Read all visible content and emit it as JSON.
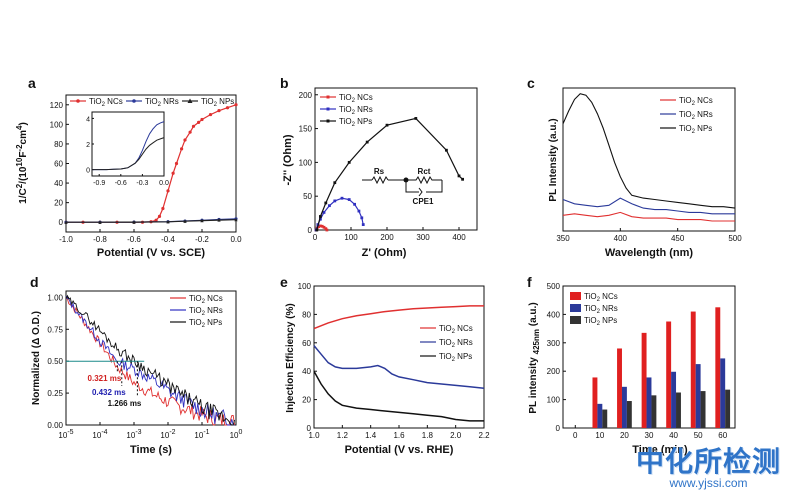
{
  "watermark": {
    "title": "中化所检测",
    "url": "www.yjssi.com"
  },
  "chart_data": [
    {
      "panel": "a",
      "type": "line",
      "ylabel_html": "1/C<tspan font-size='8' dy='-4'>2</tspan><tspan dy='4'>/(10</tspan><tspan font-size='8' dy='-4'>10</tspan><tspan dy='4'>F</tspan><tspan font-size='8' dy='-4'>-2</tspan><tspan dy='4'>cm</tspan><tspan font-size='8' dy='-4'>4</tspan><tspan dy='4'>)</tspan>",
      "xlabel": "Potential (V vs. SCE)",
      "xlim": [
        -1.0,
        0.0
      ],
      "ylim": [
        -10,
        130
      ],
      "xticks": [
        -1.0,
        -0.8,
        -0.6,
        -0.4,
        -0.2,
        0.0
      ],
      "xticklabels": [
        "-1.0",
        "-0.8",
        "-0.6",
        "-0.4",
        "-0.2",
        "0.0"
      ],
      "yticks": [
        0,
        20,
        40,
        60,
        80,
        100,
        120
      ],
      "series": [
        {
          "name_html": "TiO<tspan font-size='6' dy='2'>2</tspan><tspan dy='-2'> NCs</tspan>",
          "color": "#e03030",
          "marker": "circle",
          "x": [
            -1.0,
            -0.9,
            -0.8,
            -0.7,
            -0.6,
            -0.55,
            -0.5,
            -0.47,
            -0.45,
            -0.43,
            -0.4,
            -0.37,
            -0.35,
            -0.32,
            -0.3,
            -0.27,
            -0.25,
            -0.22,
            -0.2,
            -0.15,
            -0.1,
            -0.05,
            0.0
          ],
          "y": [
            0,
            0,
            0,
            0,
            0,
            0,
            0.5,
            2,
            6,
            14,
            32,
            50,
            60,
            75,
            84,
            92,
            98,
            102,
            105,
            110,
            114,
            117,
            120
          ]
        },
        {
          "name_html": "TiO<tspan font-size='6' dy='2'>2</tspan><tspan dy='-2'> NRs</tspan>",
          "color": "#2b3a9a",
          "marker": "circle",
          "x": [
            -1.0,
            -0.8,
            -0.6,
            -0.4,
            -0.3,
            -0.2,
            -0.1,
            0.0
          ],
          "y": [
            0,
            0,
            0.1,
            0.5,
            1.2,
            2,
            2.8,
            3.5
          ]
        },
        {
          "name_html": "TiO<tspan font-size='6' dy='2'>2</tspan><tspan dy='-2'> NPs</tspan>",
          "color": "#222222",
          "marker": "triangle",
          "x": [
            -1.0,
            -0.8,
            -0.6,
            -0.4,
            -0.3,
            -0.2,
            -0.1,
            0.0
          ],
          "y": [
            0,
            0,
            0.1,
            0.4,
            1.0,
            1.6,
            2.2,
            2.6
          ]
        }
      ],
      "inset": {
        "xlim": [
          -1.0,
          0.0
        ],
        "ylim": [
          -0.5,
          4.5
        ],
        "xticks": [
          -0.9,
          -0.6,
          -0.3,
          0.0
        ],
        "xticklabels": [
          "-0.9",
          "-0.6",
          "-0.3",
          "0.0"
        ],
        "yticks": [
          0,
          2,
          4
        ],
        "series": [
          {
            "color": "#2b3a9a",
            "x": [
              -1.0,
              -0.9,
              -0.8,
              -0.7,
              -0.6,
              -0.5,
              -0.4,
              -0.35,
              -0.3,
              -0.25,
              -0.2,
              -0.15,
              -0.1,
              -0.05,
              0.0
            ],
            "y": [
              0,
              0,
              0,
              0.02,
              0.05,
              0.15,
              0.5,
              0.9,
              1.5,
              2.2,
              2.8,
              3.2,
              3.5,
              3.65,
              3.75
            ]
          },
          {
            "color": "#222222",
            "x": [
              -1.0,
              -0.9,
              -0.8,
              -0.7,
              -0.6,
              -0.5,
              -0.4,
              -0.35,
              -0.3,
              -0.25,
              -0.2,
              -0.15,
              -0.1,
              -0.05,
              0.0
            ],
            "y": [
              0,
              0,
              0,
              0.02,
              0.05,
              0.15,
              0.5,
              0.8,
              1.2,
              1.6,
              1.9,
              2.1,
              2.3,
              2.4,
              2.5
            ]
          }
        ]
      }
    },
    {
      "panel": "b",
      "type": "scatter",
      "xlabel": "Z' (Ohm)",
      "ylabel": "-Z'' (Ohm)",
      "xlim": [
        0,
        450
      ],
      "ylim": [
        0,
        210
      ],
      "xticks": [
        0,
        100,
        200,
        300,
        400
      ],
      "yticks": [
        0,
        50,
        100,
        150,
        200
      ],
      "circuit": {
        "rs": "Rs",
        "rct": "Rct",
        "cpe": "CPE1"
      },
      "series": [
        {
          "name_html": "TiO<tspan font-size='6' dy='2'>2</tspan><tspan dy='-2'> NCs</tspan>",
          "color": "#e03030",
          "x": [
            3,
            6,
            10,
            15,
            20,
            25,
            30,
            33
          ],
          "y": [
            0,
            3,
            5,
            6,
            5.5,
            4,
            2,
            0
          ]
        },
        {
          "name_html": "TiO<tspan font-size='6' dy='2'>2</tspan><tspan dy='-2'> NRs</tspan>",
          "color": "#3030c0",
          "x": [
            3,
            8,
            15,
            25,
            40,
            55,
            75,
            95,
            110,
            122,
            130,
            134
          ],
          "y": [
            0,
            8,
            16,
            26,
            36,
            43,
            47,
            45,
            38,
            28,
            18,
            8
          ]
        },
        {
          "name_html": "TiO<tspan font-size='6' dy='2'>2</tspan><tspan dy='-2'> NPs</tspan>",
          "color": "#111111",
          "x": [
            5,
            15,
            30,
            55,
            95,
            145,
            200,
            280,
            365,
            400,
            410
          ],
          "y": [
            0,
            20,
            40,
            70,
            100,
            130,
            155,
            165,
            118,
            80,
            75
          ]
        }
      ]
    },
    {
      "panel": "c",
      "type": "line",
      "xlabel": "Wavelength (nm)",
      "ylabel": "PL Intensity (a.u.)",
      "xlim": [
        350,
        500
      ],
      "ylim": [
        0,
        100
      ],
      "xticks": [
        350,
        400,
        450,
        500
      ],
      "series": [
        {
          "name_html": "TiO<tspan font-size='6' dy='2'>2</tspan><tspan dy='-2'> NCs</tspan>",
          "color": "#e03030",
          "x": [
            350,
            360,
            370,
            380,
            390,
            400,
            410,
            420,
            430,
            440,
            450,
            460,
            470,
            480,
            490,
            500
          ],
          "y": [
            11,
            12,
            11,
            10,
            11,
            13,
            10,
            9,
            9,
            9,
            8,
            8,
            8,
            7,
            7,
            7
          ]
        },
        {
          "name_html": "TiO<tspan font-size='6' dy='2'>2</tspan><tspan dy='-2'> NRs</tspan>",
          "color": "#2b3a9a",
          "x": [
            350,
            360,
            370,
            380,
            390,
            400,
            410,
            420,
            430,
            440,
            450,
            460,
            470,
            480,
            490,
            500
          ],
          "y": [
            22,
            19,
            18,
            17,
            18,
            23,
            19,
            16,
            15,
            15,
            14,
            13,
            13,
            12,
            12,
            12
          ]
        },
        {
          "name_html": "TiO<tspan font-size='6' dy='2'>2</tspan><tspan dy='-2'> NPs</tspan>",
          "color": "#111111",
          "x": [
            350,
            355,
            360,
            365,
            370,
            375,
            380,
            385,
            390,
            395,
            400,
            405,
            410,
            420,
            430,
            440,
            450,
            460,
            470,
            480,
            490,
            500
          ],
          "y": [
            75,
            84,
            92,
            96,
            95,
            90,
            82,
            72,
            60,
            48,
            38,
            30,
            25,
            23,
            22,
            21,
            20,
            19,
            18,
            17,
            17,
            16
          ]
        }
      ]
    },
    {
      "panel": "d",
      "type": "line",
      "xlabel": "Time (s)",
      "ylabel": "Normalized (Δ O.D.)",
      "xscale": "log",
      "xlim": [
        -5,
        0
      ],
      "ylim": [
        0,
        1.05
      ],
      "xticklabels_html": [
        "10<tspan font-size='7' dy='-4'>-5</tspan>",
        "10<tspan font-size='7' dy='-4'>-4</tspan>",
        "10<tspan font-size='7' dy='-4'>-3</tspan>",
        "10<tspan font-size='7' dy='-4'>-2</tspan>",
        "10<tspan font-size='7' dy='-4'>-1</tspan>",
        "10<tspan font-size='7' dy='-4'>0</tspan>"
      ],
      "yticks": [
        0.0,
        0.25,
        0.5,
        0.75,
        1.0
      ],
      "yticklabels": [
        "0.00",
        "0.25",
        "0.50",
        "0.75",
        "1.00"
      ],
      "annotations": [
        "0.321 ms",
        "0.432 ms",
        "1.266 ms"
      ],
      "annotation_x": [
        -3.49,
        -3.36,
        -2.9
      ],
      "series": [
        {
          "name_html": "TiO<tspan font-size='6' dy='2'>2</tspan><tspan dy='-2'> NCs</tspan>",
          "color": "#e03030",
          "x": [
            -5,
            -4.5,
            -4,
            -3.5,
            -3,
            -2.5,
            -2,
            -1.5,
            -1,
            -0.5,
            0
          ],
          "y": [
            1.0,
            0.82,
            0.64,
            0.46,
            0.33,
            0.25,
            0.18,
            0.13,
            0.08,
            0.04,
            0.02
          ]
        },
        {
          "name_html": "TiO<tspan font-size='6' dy='2'>2</tspan><tspan dy='-2'> NRs</tspan>",
          "color": "#3030c0",
          "x": [
            -5,
            -4.5,
            -4,
            -3.5,
            -3,
            -2.5,
            -2,
            -1.5,
            -1,
            -0.5,
            0
          ],
          "y": [
            1.0,
            0.83,
            0.66,
            0.5,
            0.44,
            0.36,
            0.27,
            0.19,
            0.12,
            0.06,
            0.03
          ]
        },
        {
          "name_html": "TiO<tspan font-size='6' dy='2'>2</tspan><tspan dy='-2'> NPs</tspan>",
          "color": "#111111",
          "x": [
            -5,
            -4.5,
            -4,
            -3.5,
            -3,
            -2.5,
            -2,
            -1.5,
            -1,
            -0.5,
            0
          ],
          "y": [
            1.0,
            0.88,
            0.74,
            0.6,
            0.5,
            0.41,
            0.31,
            0.22,
            0.14,
            0.07,
            0.03
          ]
        }
      ]
    },
    {
      "panel": "e",
      "type": "line",
      "xlabel": "Potential (V vs. RHE)",
      "ylabel": "Injection Efficiency (%)",
      "xlim": [
        1.0,
        2.2
      ],
      "ylim": [
        0,
        100
      ],
      "xticks": [
        1.0,
        1.2,
        1.4,
        1.6,
        1.8,
        2.0,
        2.2
      ],
      "xticklabels": [
        "1.0",
        "1.2",
        "1.4",
        "1.6",
        "1.8",
        "2.0",
        "2.2"
      ],
      "yticks": [
        0,
        20,
        40,
        60,
        80,
        100
      ],
      "series": [
        {
          "name_html": "TiO<tspan font-size='6' dy='2'>2</tspan><tspan dy='-2'> NCs</tspan>",
          "color": "#e03030",
          "x": [
            1.0,
            1.1,
            1.2,
            1.3,
            1.4,
            1.5,
            1.6,
            1.7,
            1.8,
            1.9,
            2.0,
            2.1,
            2.2
          ],
          "y": [
            70,
            74,
            77,
            79,
            80.5,
            82,
            83,
            84,
            84.5,
            85,
            85.5,
            86,
            86
          ]
        },
        {
          "name_html": "TiO<tspan font-size='6' dy='2'>2</tspan><tspan dy='-2'> NRs</tspan>",
          "color": "#2b3a9a",
          "x": [
            1.0,
            1.05,
            1.1,
            1.15,
            1.2,
            1.3,
            1.4,
            1.45,
            1.5,
            1.55,
            1.6,
            1.7,
            1.8,
            1.9,
            2.0,
            2.1,
            2.2
          ],
          "y": [
            58,
            52,
            46,
            43,
            42,
            42,
            43,
            44,
            42,
            38,
            36,
            34,
            32,
            31,
            30,
            29,
            28
          ]
        },
        {
          "name_html": "TiO<tspan font-size='6' dy='2'>2</tspan><tspan dy='-2'> NPs</tspan>",
          "color": "#111111",
          "x": [
            1.0,
            1.05,
            1.1,
            1.15,
            1.2,
            1.3,
            1.4,
            1.5,
            1.6,
            1.7,
            1.8,
            1.9,
            2.0,
            2.1,
            2.2
          ],
          "y": [
            40,
            31,
            24,
            19,
            16,
            14,
            13,
            12,
            11,
            10,
            9,
            8,
            6,
            5,
            5
          ]
        }
      ]
    },
    {
      "panel": "f",
      "type": "bar",
      "xlabel": "Time (min)",
      "ylabel_html": "PL intensity <tspan font-size='8' dy='3'>425nm</tspan><tspan dy='-3'> (a.u.)</tspan>",
      "xlim": [
        -5,
        65
      ],
      "ylim": [
        0,
        500
      ],
      "xticks": [
        0,
        10,
        20,
        30,
        40,
        50,
        60
      ],
      "yticks": [
        0,
        100,
        200,
        300,
        400,
        500
      ],
      "categories": [
        10,
        20,
        30,
        40,
        50,
        60
      ],
      "series": [
        {
          "name_html": "TiO<tspan font-size='6' dy='2'>2</tspan><tspan dy='-2'> NCs</tspan>",
          "color": "#e02020",
          "values": [
            178,
            280,
            335,
            375,
            410,
            425
          ]
        },
        {
          "name_html": "TiO<tspan font-size='6' dy='2'>2</tspan><tspan dy='-2'> NRs</tspan>",
          "color": "#2b3a9a",
          "values": [
            85,
            145,
            178,
            198,
            225,
            245
          ]
        },
        {
          "name_html": "TiO<tspan font-size='6' dy='2'>2</tspan><tspan dy='-2'> NPs</tspan>",
          "color": "#333333",
          "values": [
            65,
            95,
            115,
            125,
            130,
            135
          ]
        }
      ]
    }
  ]
}
